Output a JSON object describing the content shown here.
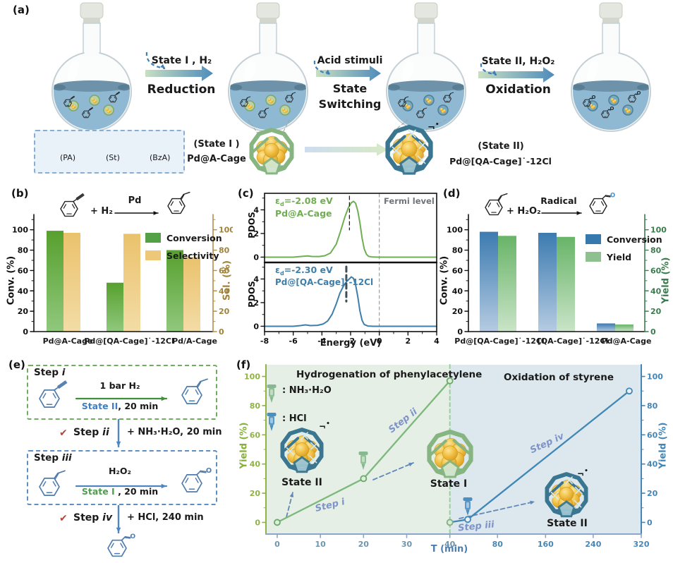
{
  "symbols": {
    "radical_bar": "¬",
    "radical_dot": "•",
    "check": "✔"
  },
  "panels": {
    "a": {
      "label": "(a)",
      "arrow1": {
        "top": "State I , H₂",
        "bottom": "Reduction"
      },
      "arrow2": {
        "top": "Acid stimuli",
        "bottom1": "State",
        "bottom2": "Switching"
      },
      "arrow3": {
        "top": "State II, H₂O₂",
        "bottom": "Oxidation"
      },
      "molecules": {
        "pa": "(PA)",
        "st": "(St)",
        "bza": "(BzA)"
      },
      "state1_line1": "(State I )",
      "state1_line2": "Pd@A-Cage",
      "state2_line1": "(State II)",
      "state2_line2": "Pd@[QA-Cage]˙-12Cl"
    },
    "b": {
      "label": "(b)",
      "reaction": {
        "plus_reagent": "+ H₂",
        "catalyst": "Pd"
      }
    },
    "c": {
      "label": "(c)",
      "top": {
        "eps": "ε",
        "eps_sub": "d",
        "eps_val": "=-2.08 eV",
        "name": "Pd@A-Cage"
      },
      "bottom": {
        "eps": "ε",
        "eps_sub": "d",
        "eps_val": "=-2.30 eV",
        "name": "Pd@[QA-Cage]˙-12Cl"
      },
      "fermi": "Fermi level",
      "ylabel": "PDOS",
      "xlabel": "Energy (eV)"
    },
    "d": {
      "label": "(d)",
      "reaction": {
        "plus_reagent": "+ H₂O₂",
        "catalyst": "Radical"
      }
    },
    "e": {
      "label": "(e)",
      "step1_title": "Step ",
      "step1_it": "i",
      "step1_above": "1 bar H₂",
      "step1_state": "State II",
      "step1_rest": ", 20 min",
      "step2_title": "Step ",
      "step2_it": "ii",
      "step2_note": "+ NH₃·H₂O, 20 min",
      "step3_title": "Step ",
      "step3_it": "iii",
      "step3_above": "H₂O₂",
      "step3_state": "State I",
      "step3_rest": " , 20 min",
      "step4_title": "Step ",
      "step4_it": "iv",
      "step4_note": "+ HCl, 240 min"
    },
    "f": {
      "label": "(f)",
      "title_left": "Hydrogenation of phenylacetylene",
      "title_right": "Oxidation of styrene",
      "legend1": ": NH₃·H₂O",
      "legend2": ": HCl",
      "state2_left": "State II",
      "state1": "State I",
      "state2_right": "State II",
      "steps": [
        "Step i",
        "Step ii",
        "Step iii",
        "Step iv"
      ],
      "xlabel": "T (min)",
      "ylabel_left": "Yield (%)",
      "ylabel_right": "Yield (%)"
    }
  },
  "chart_data": [
    {
      "id": "b",
      "type": "bar",
      "categories": [
        "Pd@A-Cage",
        "Pd@[QA-Cage]˙-12Cl",
        "Pd/A-Cage"
      ],
      "series": [
        {
          "name": "Conversion",
          "values": [
            99,
            48,
            80
          ],
          "color_top": "#57a02e",
          "color_bottom": "#90c87d",
          "swatch": "#53a047"
        },
        {
          "name": "Selectivity",
          "values": [
            97,
            96,
            73
          ],
          "color_top": "#eac26c",
          "color_bottom": "#f3dca6",
          "swatch": "#ecc878"
        }
      ],
      "ylabel_left": "Conv. (%)",
      "ylabel_right": "Sel. (%)",
      "yticks": [
        0,
        20,
        40,
        60,
        80,
        100
      ],
      "ylim": [
        0,
        115
      ]
    },
    {
      "id": "c",
      "type": "line",
      "xlabel": "Energy (eV)",
      "ylabel": "PDOS",
      "xlim": [
        -8,
        4
      ],
      "xticks": [
        -8,
        -6,
        -4,
        -2,
        0,
        2,
        4
      ],
      "yticks": [
        0,
        2,
        4
      ],
      "fermi_x": 0,
      "subplots": [
        {
          "name": "Pd@A-Cage",
          "eps_ev": -2.08,
          "color": "#6fae53",
          "points": [
            [
              -8,
              0
            ],
            [
              -6,
              0
            ],
            [
              -5.3,
              0.07
            ],
            [
              -5,
              0.1
            ],
            [
              -4.7,
              0.06
            ],
            [
              -4.2,
              0.05
            ],
            [
              -3.8,
              0.12
            ],
            [
              -3.4,
              0.35
            ],
            [
              -3.0,
              1.1
            ],
            [
              -2.7,
              2.2
            ],
            [
              -2.4,
              3.4
            ],
            [
              -2.15,
              4.2
            ],
            [
              -1.95,
              4.6
            ],
            [
              -1.8,
              4.72
            ],
            [
              -1.65,
              4.55
            ],
            [
              -1.5,
              3.9
            ],
            [
              -1.35,
              2.9
            ],
            [
              -1.2,
              1.6
            ],
            [
              -1.05,
              0.7
            ],
            [
              -0.9,
              0.25
            ],
            [
              -0.75,
              0.07
            ],
            [
              -0.5,
              0.01
            ],
            [
              0,
              0
            ],
            [
              4,
              0
            ]
          ]
        },
        {
          "name": "Pd@[QA-Cage]˙-12Cl",
          "eps_ev": -2.3,
          "color": "#3e7fa9",
          "points": [
            [
              -8,
              0
            ],
            [
              -6,
              0
            ],
            [
              -5.5,
              0.06
            ],
            [
              -5.15,
              0.12
            ],
            [
              -4.8,
              0.06
            ],
            [
              -4.3,
              0.08
            ],
            [
              -3.9,
              0.2
            ],
            [
              -3.6,
              0.45
            ],
            [
              -3.3,
              1.0
            ],
            [
              -3.0,
              1.9
            ],
            [
              -2.75,
              2.8
            ],
            [
              -2.5,
              3.4
            ],
            [
              -2.3,
              3.75
            ],
            [
              -2.1,
              4.0
            ],
            [
              -1.95,
              4.18
            ],
            [
              -1.8,
              4.05
            ],
            [
              -1.65,
              3.5
            ],
            [
              -1.5,
              2.5
            ],
            [
              -1.35,
              1.3
            ],
            [
              -1.2,
              0.5
            ],
            [
              -1.05,
              0.15
            ],
            [
              -0.8,
              0.02
            ],
            [
              -0.4,
              0
            ],
            [
              4,
              0
            ]
          ]
        }
      ]
    },
    {
      "id": "d",
      "type": "bar",
      "categories": [
        "Pd@[QA-Cage]˙-12Cl",
        "[QA-Cage]˙-12Cl",
        "Pd@A-Cage"
      ],
      "series": [
        {
          "name": "Conversion",
          "values": [
            98,
            97,
            8
          ],
          "color_top": "#3c7bb0",
          "color_bottom": "#b5cbe2",
          "swatch": "#3579ad"
        },
        {
          "name": "Yield",
          "values": [
            94,
            93,
            7
          ],
          "color_top": "#68b468",
          "color_bottom": "#cae4c8",
          "swatch": "#8fc08f"
        }
      ],
      "ylabel_left": "Conv. (%)",
      "ylabel_right": "Yield (%)",
      "yticks": [
        0,
        20,
        40,
        60,
        80,
        100
      ],
      "ylim": [
        0,
        115
      ]
    },
    {
      "id": "f",
      "type": "line",
      "xlabel": "T (min)",
      "xticks_left": [
        0,
        10,
        20,
        30,
        40
      ],
      "xticks_right": [
        80,
        160,
        240,
        320
      ],
      "yticks": [
        0,
        20,
        40,
        60,
        80,
        100
      ],
      "switch_x": 40,
      "series": [
        {
          "name": "Hydrogenation of phenylacetylene",
          "color": "#7cb87c",
          "points": [
            [
              0,
              0
            ],
            [
              20,
              30
            ],
            [
              40,
              97
            ]
          ]
        },
        {
          "name": "Oxidation of styrene",
          "color": "#4187b5",
          "points": [
            [
              40,
              0
            ],
            [
              55,
              2
            ],
            [
              300,
              90
            ]
          ]
        }
      ]
    }
  ]
}
